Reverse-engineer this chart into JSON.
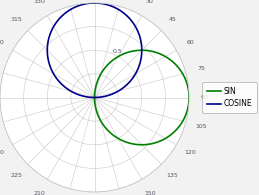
{
  "sin_color": "#008000",
  "cosine_color": "#00008B",
  "sin_label": "SIN",
  "cosine_label": "COSINE",
  "sin_linewidth": 1.2,
  "cosine_linewidth": 1.2,
  "background_color": "#f2f2f2",
  "plot_bg_color": "#ffffff",
  "figsize": [
    2.59,
    1.95
  ],
  "dpi": 100,
  "legend_fontsize": 5.5,
  "tick_fontsize": 4.5
}
